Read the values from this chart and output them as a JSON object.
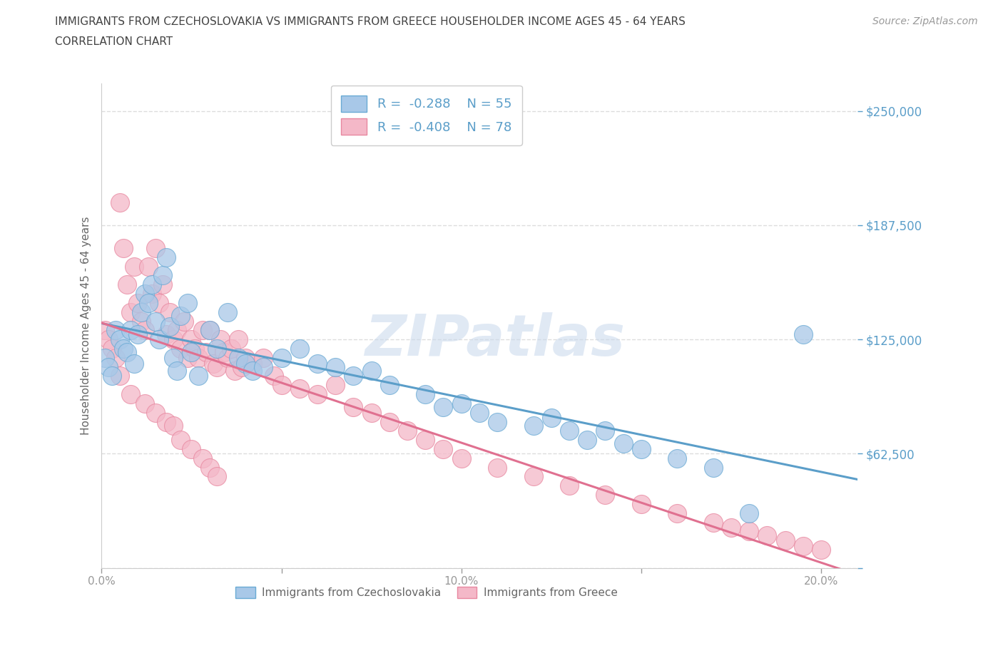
{
  "title_line1": "IMMIGRANTS FROM CZECHOSLOVAKIA VS IMMIGRANTS FROM GREECE HOUSEHOLDER INCOME AGES 45 - 64 YEARS",
  "title_line2": "CORRELATION CHART",
  "source_text": "Source: ZipAtlas.com",
  "ylabel": "Householder Income Ages 45 - 64 years",
  "xlim": [
    0.0,
    0.21
  ],
  "ylim": [
    0,
    265000
  ],
  "yticks": [
    0,
    62500,
    125000,
    187500,
    250000
  ],
  "ytick_labels": [
    "",
    "$62,500",
    "$125,000",
    "$187,500",
    "$250,000"
  ],
  "xticks": [
    0.0,
    0.05,
    0.1,
    0.15,
    0.2
  ],
  "xtick_labels": [
    "0.0%",
    "",
    "10.0%",
    "",
    "20.0%"
  ],
  "czech_color": "#a8c8e8",
  "czech_edge_color": "#6aaad4",
  "czech_line_color": "#5b9ec9",
  "greece_color": "#f4b8c8",
  "greece_edge_color": "#e888a0",
  "greece_line_color": "#e07090",
  "R_czech": -0.288,
  "N_czech": 55,
  "R_greece": -0.408,
  "N_greece": 78,
  "legend_label_czech": "Immigrants from Czechoslovakia",
  "legend_label_greece": "Immigrants from Greece",
  "watermark_text": "ZIPatlas",
  "background_color": "#ffffff",
  "grid_color": "#dddddd",
  "title_color": "#444444",
  "axis_label_color": "#666666",
  "tick_color": "#999999",
  "right_tick_color": "#5b9ec9",
  "czech_x": [
    0.001,
    0.002,
    0.003,
    0.004,
    0.005,
    0.006,
    0.007,
    0.008,
    0.009,
    0.01,
    0.011,
    0.012,
    0.013,
    0.014,
    0.015,
    0.016,
    0.017,
    0.018,
    0.019,
    0.02,
    0.021,
    0.022,
    0.024,
    0.025,
    0.027,
    0.03,
    0.032,
    0.035,
    0.038,
    0.04,
    0.042,
    0.045,
    0.05,
    0.055,
    0.06,
    0.065,
    0.07,
    0.075,
    0.08,
    0.09,
    0.095,
    0.1,
    0.105,
    0.11,
    0.12,
    0.125,
    0.13,
    0.135,
    0.14,
    0.145,
    0.15,
    0.16,
    0.17,
    0.18,
    0.195
  ],
  "czech_y": [
    115000,
    110000,
    105000,
    130000,
    125000,
    120000,
    118000,
    130000,
    112000,
    128000,
    140000,
    150000,
    145000,
    155000,
    135000,
    125000,
    160000,
    170000,
    132000,
    115000,
    108000,
    138000,
    145000,
    118000,
    105000,
    130000,
    120000,
    140000,
    115000,
    112000,
    108000,
    110000,
    115000,
    120000,
    112000,
    110000,
    105000,
    108000,
    100000,
    95000,
    88000,
    90000,
    85000,
    80000,
    78000,
    82000,
    75000,
    70000,
    75000,
    68000,
    65000,
    60000,
    55000,
    30000,
    128000
  ],
  "greece_x": [
    0.001,
    0.002,
    0.003,
    0.004,
    0.005,
    0.006,
    0.007,
    0.008,
    0.009,
    0.01,
    0.011,
    0.012,
    0.013,
    0.014,
    0.015,
    0.016,
    0.017,
    0.018,
    0.019,
    0.02,
    0.021,
    0.022,
    0.023,
    0.024,
    0.025,
    0.026,
    0.027,
    0.028,
    0.029,
    0.03,
    0.031,
    0.032,
    0.033,
    0.034,
    0.035,
    0.036,
    0.037,
    0.038,
    0.039,
    0.04,
    0.042,
    0.045,
    0.048,
    0.05,
    0.055,
    0.06,
    0.065,
    0.07,
    0.075,
    0.08,
    0.085,
    0.09,
    0.095,
    0.1,
    0.11,
    0.12,
    0.13,
    0.14,
    0.15,
    0.16,
    0.17,
    0.175,
    0.18,
    0.185,
    0.19,
    0.195,
    0.2,
    0.005,
    0.008,
    0.012,
    0.015,
    0.018,
    0.02,
    0.022,
    0.025,
    0.028,
    0.03,
    0.032
  ],
  "greece_y": [
    130000,
    125000,
    120000,
    115000,
    200000,
    175000,
    155000,
    140000,
    165000,
    145000,
    135000,
    130000,
    165000,
    150000,
    175000,
    145000,
    155000,
    128000,
    140000,
    125000,
    130000,
    120000,
    135000,
    115000,
    125000,
    120000,
    115000,
    130000,
    118000,
    130000,
    112000,
    110000,
    125000,
    118000,
    115000,
    120000,
    108000,
    125000,
    110000,
    115000,
    112000,
    115000,
    105000,
    100000,
    98000,
    95000,
    100000,
    88000,
    85000,
    80000,
    75000,
    70000,
    65000,
    60000,
    55000,
    50000,
    45000,
    40000,
    35000,
    30000,
    25000,
    22000,
    20000,
    18000,
    15000,
    12000,
    10000,
    105000,
    95000,
    90000,
    85000,
    80000,
    78000,
    70000,
    65000,
    60000,
    55000,
    50000
  ]
}
